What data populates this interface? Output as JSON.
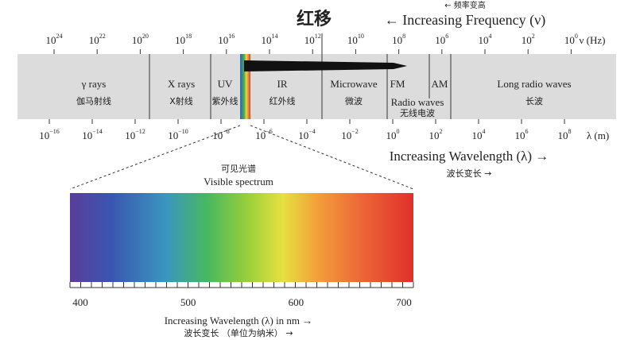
{
  "header": {
    "title": "红移",
    "frequency_direction": "← Increasing Frequency (ν)",
    "frequency_direction_cn": "← 频率变高"
  },
  "frequency_axis": {
    "unit": "ν (Hz)",
    "base": "10",
    "exponents": [
      "24",
      "22",
      "20",
      "18",
      "16",
      "14",
      "12",
      "10",
      "8",
      "6",
      "4",
      "2",
      "0"
    ]
  },
  "wavelength_axis": {
    "unit": "λ (m)",
    "base": "10",
    "exponents": [
      "−16",
      "−14",
      "−12",
      "−10",
      "−8",
      "−6",
      "−4",
      "−2",
      "0",
      "2",
      "4",
      "6",
      "8"
    ]
  },
  "bands": [
    {
      "label": "γ rays",
      "label_cn": "伽马射线"
    },
    {
      "label": "X rays",
      "label_cn": "X射线"
    },
    {
      "label": "UV",
      "label_cn": "紫外线"
    },
    {
      "label": "IR",
      "label_cn": "红外线"
    },
    {
      "label": "Microwave",
      "label_cn": "微波"
    },
    {
      "label": "FM"
    },
    {
      "label": "AM"
    },
    {
      "label": "Radio waves",
      "label_cn": "无线电波"
    },
    {
      "label": "Long radio waves",
      "label_cn": "长波"
    }
  ],
  "wavelength_direction": "Increasing Wavelength (λ) →",
  "wavelength_direction_cn": "波长变长 →",
  "visible": {
    "label_cn": "可见光谱",
    "label": "Visible spectrum",
    "ticks": [
      400,
      500,
      600,
      700
    ],
    "axis_label": "Increasing Wavelength (λ) in nm →",
    "axis_label_cn": "波长变长 （单位为纳米） →"
  }
}
